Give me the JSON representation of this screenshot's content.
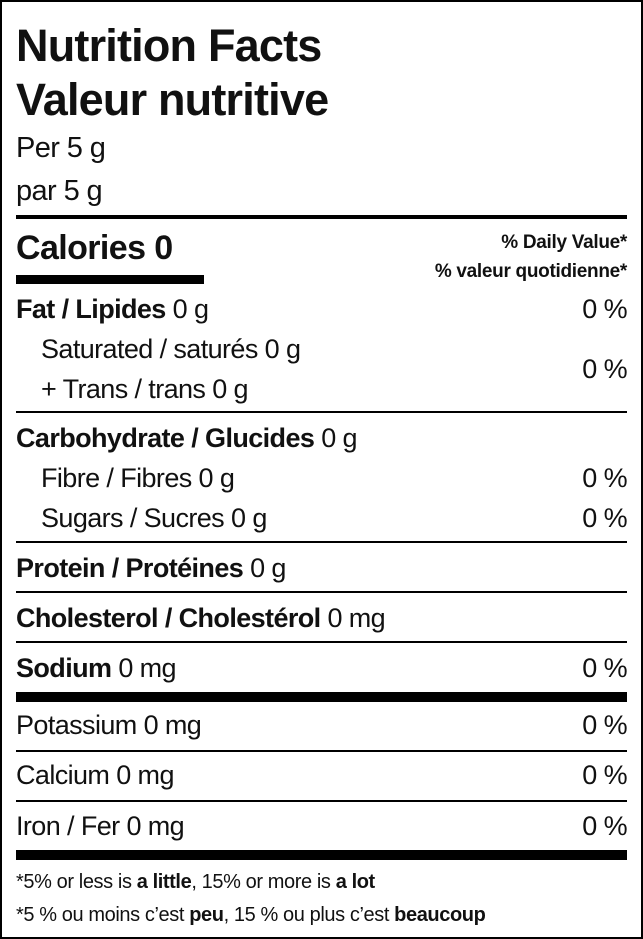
{
  "title_en": "Nutrition Facts",
  "title_fr": "Valeur nutritive",
  "serving_en": "Per 5 g",
  "serving_fr": "par 5 g",
  "calories": {
    "label": "Calories",
    "value": "0"
  },
  "dv_header_en": "% Daily Value*",
  "dv_header_fr": "% valeur quotidienne*",
  "rows": {
    "fat": {
      "label": "Fat / Lipides",
      "amount": "0 g",
      "dv": "0 %"
    },
    "saturated": {
      "label": "Saturated / saturés",
      "amount": "0 g"
    },
    "trans": {
      "label": "+ Trans / trans",
      "amount": "0 g"
    },
    "sat_trans_dv": "0 %",
    "carbohydrate": {
      "label": "Carbohydrate / Glucides",
      "amount": "0 g"
    },
    "fibre": {
      "label": "Fibre / Fibres",
      "amount": "0 g",
      "dv": "0 %"
    },
    "sugars": {
      "label": "Sugars / Sucres",
      "amount": "0 g",
      "dv": "0 %"
    },
    "protein": {
      "label": "Protein / Protéines",
      "amount": "0 g"
    },
    "cholesterol": {
      "label": "Cholesterol / Cholestérol",
      "amount": "0 mg"
    },
    "sodium": {
      "label": "Sodium",
      "amount": "0 mg",
      "dv": "0 %"
    },
    "potassium": {
      "label": "Potassium",
      "amount": "0 mg",
      "dv": "0 %"
    },
    "calcium": {
      "label": "Calcium",
      "amount": "0 mg",
      "dv": "0 %"
    },
    "iron": {
      "label": "Iron / Fer",
      "amount": "0 mg",
      "dv": "0 %"
    }
  },
  "footnote_en": {
    "p1": "*5% or less is ",
    "b1": "a little",
    "p2": ", 15% or more is ",
    "b2": "a lot"
  },
  "footnote_fr": {
    "p1": "*5 % ou moins c’est ",
    "b1": "peu",
    "p2": ", 15 % ou plus c’est ",
    "b2": "beaucoup"
  }
}
